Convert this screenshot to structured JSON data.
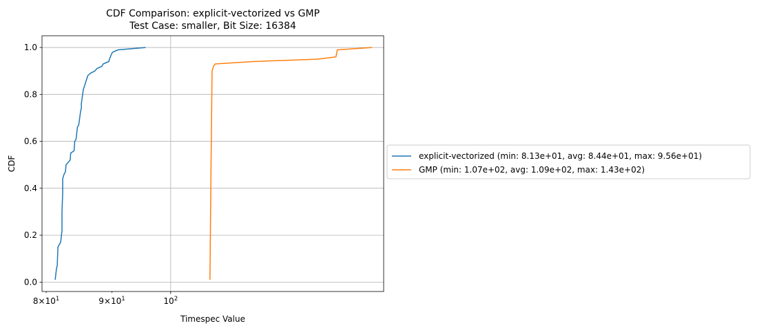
{
  "chart_data": {
    "type": "line",
    "title": "CDF Comparison: explicit-vectorized vs GMP",
    "subtitle": "Test Case: smaller, Bit Size: 16384",
    "xlabel": "Timespec Value",
    "ylabel": "CDF",
    "xscale": "log",
    "xlim": [
      79.4,
      146.5
    ],
    "ylim": [
      -0.04,
      1.05
    ],
    "grid": true,
    "legend_position": "outside-right",
    "x_ticks": [
      {
        "value": 80,
        "base": "8",
        "mult": "×",
        "pow": "10",
        "exp": "1"
      },
      {
        "value": 90,
        "base": "9",
        "mult": "×",
        "pow": "10",
        "exp": "1"
      },
      {
        "value": 100,
        "base": "",
        "mult": "",
        "pow": "10",
        "exp": "2"
      }
    ],
    "y_ticks": [
      "0.0",
      "0.2",
      "0.4",
      "0.6",
      "0.8",
      "1.0"
    ],
    "series": [
      {
        "name": "explicit-vectorized (min: 8.13e+01, avg: 8.44e+01, max: 9.56e+01)",
        "color": "#1f77b4",
        "x": [
          81.3,
          81.5,
          81.6,
          81.7,
          82.1,
          82.3,
          82.3,
          82.4,
          82.4,
          82.6,
          82.8,
          82.9,
          83.2,
          83.5,
          83.6,
          84.1,
          84.2,
          84.4,
          84.6,
          84.8,
          85.1,
          85.2,
          85.2,
          85.4,
          85.5,
          86.2,
          86.6,
          87.3,
          87.6,
          88.4,
          88.6,
          89.5,
          89.6,
          89.9,
          90.1,
          91.0,
          95.6
        ],
        "y": [
          0.01,
          0.06,
          0.07,
          0.15,
          0.17,
          0.22,
          0.3,
          0.38,
          0.44,
          0.46,
          0.47,
          0.5,
          0.51,
          0.52,
          0.55,
          0.56,
          0.6,
          0.61,
          0.66,
          0.67,
          0.73,
          0.74,
          0.76,
          0.8,
          0.82,
          0.88,
          0.89,
          0.9,
          0.91,
          0.92,
          0.93,
          0.94,
          0.95,
          0.97,
          0.98,
          0.99,
          1.0
        ]
      },
      {
        "name": "GMP (min: 1.07e+02, avg: 1.09e+02, max: 1.43e+02)",
        "color": "#ff7f0e",
        "x": [
          107.3,
          107.5,
          107.7,
          108.0,
          108.3,
          116.0,
          130.0,
          134.5,
          134.8,
          143.5
        ],
        "y": [
          0.01,
          0.5,
          0.9,
          0.92,
          0.93,
          0.94,
          0.95,
          0.96,
          0.99,
          1.0
        ]
      }
    ]
  }
}
